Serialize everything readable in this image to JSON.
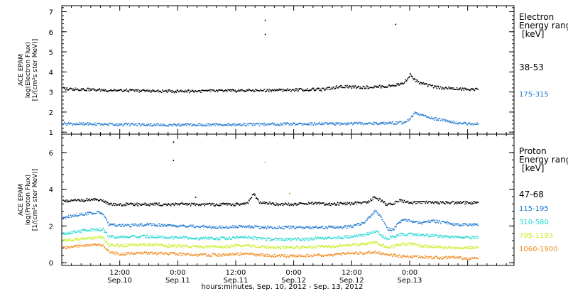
{
  "chart_data": [
    {
      "type": "scatter",
      "panel": "electron",
      "ylabel_lines": [
        "ACE EPAM",
        "log(Electron Flux)",
        "[1/(cm²s ster MeV)]"
      ],
      "legend_title_lines": [
        "Electron",
        "Energy range",
        "[keV]"
      ],
      "ylim": [
        0.9,
        7.3
      ],
      "yticks": [
        1,
        2,
        3,
        4,
        5,
        6,
        7
      ],
      "series": [
        {
          "name": "38-53",
          "color": "#000000",
          "x": [
            -0.0417,
            0.0,
            0.05,
            0.1,
            0.15,
            0.2,
            0.25,
            0.3,
            0.35,
            0.4,
            0.45,
            0.5,
            0.55,
            0.6,
            0.65,
            0.7,
            0.75,
            0.8,
            0.85,
            0.9,
            0.95,
            1.0,
            1.05,
            1.1,
            1.15,
            1.2,
            1.25,
            1.3,
            1.35,
            1.4,
            1.45,
            1.5,
            1.55,
            1.6,
            1.65,
            1.7,
            1.75,
            1.8,
            1.85,
            1.9,
            1.95,
            2.0,
            2.05,
            2.1,
            2.15,
            2.2,
            2.25,
            2.3,
            2.35,
            2.4,
            2.45,
            2.5,
            2.55,
            2.6,
            2.65,
            2.7,
            2.75,
            2.8,
            2.85,
            2.9,
            2.95,
            3.0,
            3.0417,
            3.1,
            3.15,
            3.2,
            3.25,
            3.3,
            3.35,
            3.4,
            3.45,
            3.5,
            3.55,
            3.5833
          ],
          "values": [
            3.2,
            3.2,
            3.18,
            3.17,
            3.16,
            3.15,
            3.14,
            3.13,
            3.12,
            3.12,
            3.11,
            3.1,
            3.1,
            3.09,
            3.09,
            3.08,
            3.08,
            3.07,
            3.07,
            3.07,
            3.06,
            3.06,
            3.06,
            3.06,
            3.07,
            3.07,
            3.07,
            3.08,
            3.08,
            3.08,
            3.09,
            3.09,
            3.1,
            3.1,
            3.1,
            3.11,
            3.11,
            3.11,
            3.12,
            3.12,
            3.13,
            3.13,
            3.14,
            3.14,
            3.15,
            3.15,
            3.15,
            3.2,
            3.25,
            3.3,
            3.3,
            3.28,
            3.27,
            3.26,
            3.27,
            3.28,
            3.3,
            3.3,
            3.35,
            3.4,
            3.5,
            3.9,
            3.6,
            3.45,
            3.35,
            3.3,
            3.25,
            3.22,
            3.2,
            3.18,
            3.17,
            3.15,
            3.15,
            3.15
          ]
        },
        {
          "name": "175-315",
          "color": "#1e78d2",
          "x": [
            -0.0417,
            0.0,
            0.1,
            0.2,
            0.3,
            0.4,
            0.5,
            0.6,
            0.7,
            0.8,
            0.9,
            1.0,
            1.1,
            1.2,
            1.3,
            1.4,
            1.5,
            1.6,
            1.7,
            1.8,
            1.9,
            2.0,
            2.1,
            2.2,
            2.3,
            2.4,
            2.5,
            2.6,
            2.7,
            2.8,
            2.9,
            2.95,
            3.0,
            3.0417,
            3.1,
            3.2,
            3.3,
            3.4,
            3.5,
            3.5833
          ],
          "values": [
            1.45,
            1.45,
            1.44,
            1.43,
            1.42,
            1.42,
            1.41,
            1.41,
            1.4,
            1.4,
            1.39,
            1.39,
            1.39,
            1.39,
            1.4,
            1.4,
            1.4,
            1.41,
            1.41,
            1.42,
            1.42,
            1.43,
            1.43,
            1.44,
            1.44,
            1.45,
            1.45,
            1.46,
            1.46,
            1.47,
            1.48,
            1.5,
            1.7,
            2.0,
            1.85,
            1.7,
            1.6,
            1.5,
            1.45,
            1.45
          ]
        }
      ],
      "spikes": [
        {
          "x": 1.75,
          "value": 6.6,
          "color": "#000000"
        },
        {
          "x": 1.75,
          "value": 5.9,
          "color": "#000000"
        },
        {
          "x": 2.875,
          "value": 6.4,
          "color": "#000000"
        }
      ]
    },
    {
      "type": "scatter",
      "panel": "proton",
      "ylabel_lines": [
        "ACE EPAM",
        "log(Proton Flux)",
        "[1/(cm²s ster MeV)]"
      ],
      "legend_title_lines": [
        "Proton",
        "Energy range",
        "[keV]"
      ],
      "ylim": [
        -0.15,
        7.0
      ],
      "yticks": [
        0,
        2,
        4,
        6
      ],
      "xlabel": "hours:minutes, Sep. 10, 2012 - Sep. 13, 2012",
      "xticks": [
        {
          "x": 0.5,
          "time": "12:00",
          "date": "Sep.10"
        },
        {
          "x": 1.0,
          "time": "0:00",
          "date": "Sep.11"
        },
        {
          "x": 1.5,
          "time": "12:00",
          "date": "Sep.11"
        },
        {
          "x": 2.0,
          "time": "0:00",
          "date": "Sep.12"
        },
        {
          "x": 2.5,
          "time": "12:00",
          "date": "Sep.12"
        },
        {
          "x": 3.0,
          "time": "0:00",
          "date": "Sep.13"
        }
      ],
      "xlim": [
        0.0,
        3.9
      ],
      "series": [
        {
          "name": "47-68",
          "color": "#000000",
          "x": [
            -0.0417,
            0.0,
            0.1,
            0.2,
            0.3,
            0.35,
            0.4,
            0.5,
            0.6,
            0.7,
            0.8,
            0.9,
            1.0,
            1.1,
            1.2,
            1.3,
            1.4,
            1.5,
            1.6,
            1.65,
            1.7,
            1.8,
            1.9,
            2.0,
            2.1,
            2.2,
            2.3,
            2.4,
            2.5,
            2.6,
            2.65,
            2.7,
            2.75,
            2.8,
            2.85,
            2.9,
            2.95,
            3.0,
            3.1,
            3.2,
            3.3,
            3.4,
            3.5,
            3.5833
          ],
          "values": [
            3.35,
            3.35,
            3.4,
            3.45,
            3.45,
            3.4,
            3.2,
            3.2,
            3.2,
            3.2,
            3.2,
            3.2,
            3.2,
            3.2,
            3.2,
            3.2,
            3.2,
            3.2,
            3.25,
            3.8,
            3.3,
            3.25,
            3.2,
            3.2,
            3.25,
            3.25,
            3.2,
            3.25,
            3.25,
            3.3,
            3.4,
            3.6,
            3.4,
            3.2,
            3.2,
            3.4,
            3.35,
            3.3,
            3.3,
            3.3,
            3.3,
            3.3,
            3.3,
            3.3
          ]
        },
        {
          "name": "115-195",
          "color": "#1e78d2",
          "x": [
            -0.0417,
            0.0,
            0.1,
            0.2,
            0.3,
            0.35,
            0.4,
            0.5,
            0.6,
            0.7,
            0.8,
            0.9,
            1.0,
            1.1,
            1.2,
            1.3,
            1.4,
            1.5,
            1.6,
            1.7,
            1.8,
            1.9,
            2.0,
            2.1,
            2.2,
            2.3,
            2.4,
            2.5,
            2.6,
            2.65,
            2.7,
            2.75,
            2.8,
            2.85,
            2.9,
            2.95,
            3.0,
            3.1,
            3.2,
            3.3,
            3.4,
            3.5,
            3.5833
          ],
          "values": [
            2.5,
            2.5,
            2.6,
            2.7,
            2.75,
            2.7,
            2.1,
            2.05,
            2.05,
            2.1,
            2.1,
            2.05,
            2.05,
            2.0,
            2.0,
            1.95,
            1.95,
            2.0,
            2.0,
            1.95,
            1.95,
            1.95,
            1.95,
            1.95,
            1.95,
            1.95,
            1.95,
            2.0,
            2.2,
            2.5,
            2.9,
            2.5,
            1.9,
            1.8,
            2.2,
            2.4,
            2.3,
            2.2,
            2.3,
            2.2,
            2.1,
            2.1,
            2.1
          ]
        },
        {
          "name": "310-580",
          "color": "#22d7cf",
          "x": [
            -0.0417,
            0.0,
            0.1,
            0.2,
            0.3,
            0.35,
            0.4,
            0.5,
            0.6,
            0.7,
            0.8,
            0.9,
            1.0,
            1.1,
            1.2,
            1.3,
            1.4,
            1.5,
            1.6,
            1.7,
            1.8,
            1.9,
            2.0,
            2.1,
            2.2,
            2.3,
            2.4,
            2.5,
            2.6,
            2.7,
            2.8,
            2.9,
            3.0,
            3.1,
            3.2,
            3.3,
            3.4,
            3.5,
            3.5833
          ],
          "values": [
            1.6,
            1.6,
            1.7,
            1.8,
            1.85,
            1.85,
            1.45,
            1.4,
            1.45,
            1.45,
            1.45,
            1.4,
            1.4,
            1.35,
            1.35,
            1.35,
            1.35,
            1.4,
            1.4,
            1.35,
            1.3,
            1.3,
            1.3,
            1.3,
            1.35,
            1.35,
            1.4,
            1.45,
            1.55,
            1.75,
            1.3,
            1.55,
            1.6,
            1.5,
            1.5,
            1.45,
            1.4,
            1.4,
            1.4
          ]
        },
        {
          "name": "795-1193",
          "color": "#c8ee20",
          "x": [
            -0.0417,
            0.0,
            0.1,
            0.2,
            0.3,
            0.35,
            0.4,
            0.5,
            0.6,
            0.7,
            0.8,
            0.9,
            1.0,
            1.1,
            1.2,
            1.3,
            1.4,
            1.5,
            1.6,
            1.7,
            1.8,
            1.9,
            2.0,
            2.1,
            2.2,
            2.3,
            2.4,
            2.5,
            2.6,
            2.7,
            2.8,
            2.9,
            3.0,
            3.1,
            3.2,
            3.3,
            3.4,
            3.5,
            3.5833
          ],
          "values": [
            1.25,
            1.25,
            1.3,
            1.35,
            1.4,
            1.4,
            1.0,
            0.95,
            1.0,
            1.0,
            1.0,
            0.95,
            0.95,
            0.9,
            0.9,
            0.9,
            0.9,
            0.95,
            0.95,
            0.9,
            0.85,
            0.85,
            0.85,
            0.85,
            0.9,
            0.9,
            0.95,
            1.0,
            1.05,
            1.15,
            0.85,
            1.0,
            1.05,
            0.95,
            0.9,
            0.85,
            0.85,
            0.85,
            0.85
          ]
        },
        {
          "name": "1060-1900",
          "color": "#f08a1c",
          "x": [
            -0.0417,
            0.0,
            0.1,
            0.2,
            0.3,
            0.35,
            0.4,
            0.5,
            0.6,
            0.7,
            0.8,
            0.9,
            1.0,
            1.1,
            1.2,
            1.3,
            1.4,
            1.5,
            1.6,
            1.7,
            1.8,
            1.9,
            2.0,
            2.1,
            2.2,
            2.3,
            2.4,
            2.5,
            2.6,
            2.7,
            2.8,
            2.9,
            3.0,
            3.1,
            3.2,
            3.3,
            3.4,
            3.5,
            3.5833
          ],
          "values": [
            0.85,
            0.85,
            0.9,
            0.95,
            1.0,
            1.0,
            0.6,
            0.5,
            0.55,
            0.55,
            0.55,
            0.5,
            0.5,
            0.45,
            0.45,
            0.45,
            0.45,
            0.5,
            0.5,
            0.45,
            0.4,
            0.4,
            0.4,
            0.4,
            0.45,
            0.45,
            0.5,
            0.55,
            0.55,
            0.6,
            0.45,
            0.4,
            0.35,
            0.35,
            0.3,
            0.3,
            0.3,
            0.25,
            0.25
          ]
        }
      ],
      "spikes": [
        {
          "x": 0.958,
          "value": 6.6,
          "color": "#000000"
        },
        {
          "x": 0.958,
          "value": 5.6,
          "color": "#000000"
        },
        {
          "x": 1.75,
          "value": 5.5,
          "color": "#22d7cf"
        },
        {
          "x": 1.96,
          "value": 3.8,
          "color": "#f08a1c"
        },
        {
          "x": 1.15,
          "value": 3.6,
          "color": "#000000"
        }
      ]
    }
  ]
}
